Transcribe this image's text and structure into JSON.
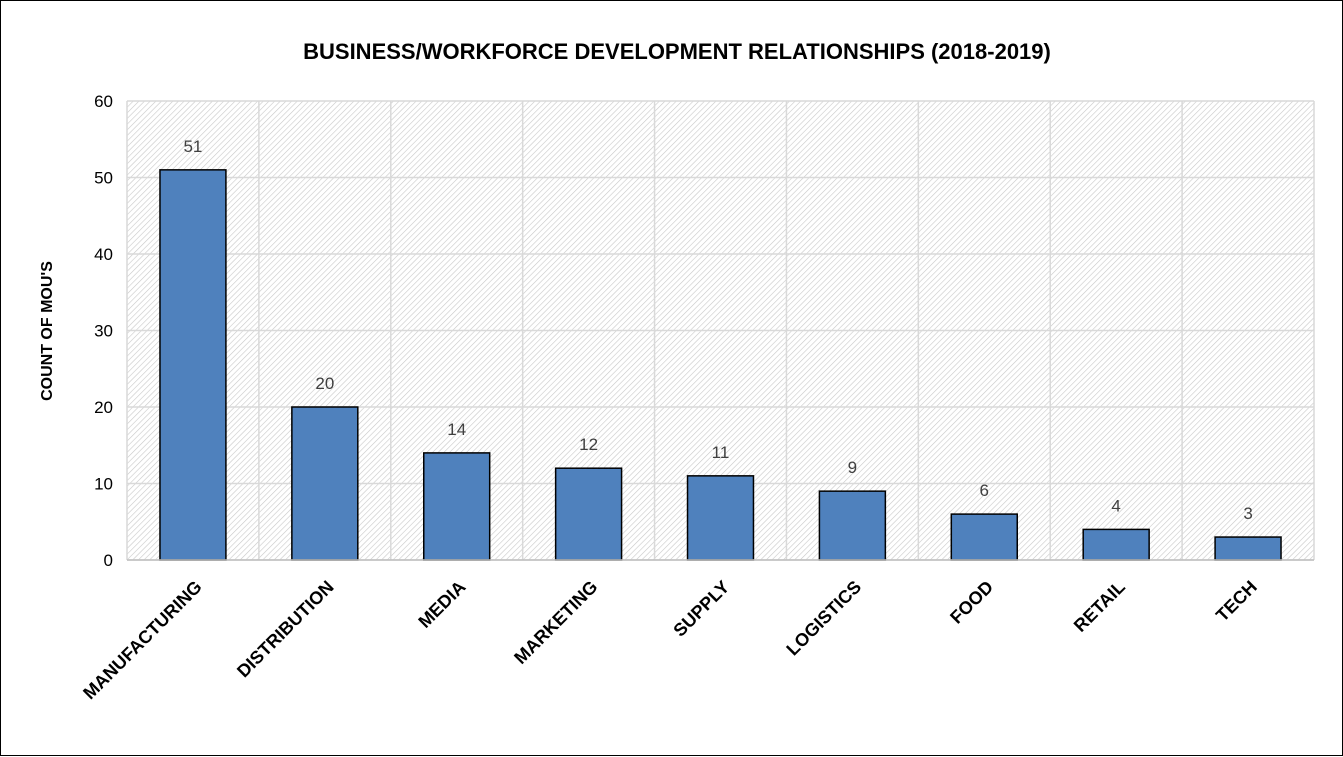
{
  "chart_data": {
    "type": "bar",
    "title": "BUSINESS/WORKFORCE DEVELOPMENT RELATIONSHIPS (2018-2019)",
    "xlabel": "",
    "ylabel": "COUNT OF MOU'S",
    "categories": [
      "MANUFACTURING",
      "DISTRIBUTION",
      "MEDIA",
      "MARKETING",
      "SUPPLY",
      "LOGISTICS",
      "FOOD",
      "RETAIL",
      "TECH"
    ],
    "values": [
      51,
      20,
      14,
      12,
      11,
      9,
      6,
      4,
      3
    ],
    "ylim": [
      0,
      60
    ],
    "yticks": [
      0,
      10,
      20,
      30,
      40,
      50,
      60
    ],
    "grid": true,
    "legend": "none",
    "bar_color": "#4F81BD",
    "bar_edge_color": "#000000",
    "data_label_color": "#404040"
  }
}
